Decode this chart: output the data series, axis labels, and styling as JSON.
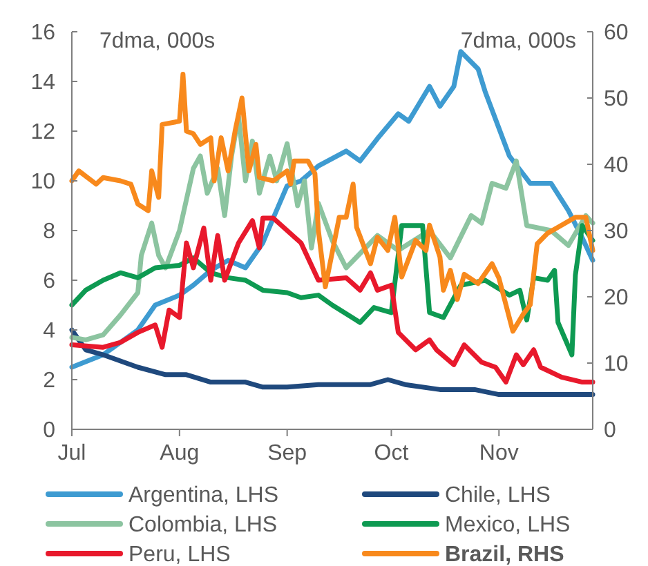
{
  "chart_data": {
    "type": "line",
    "ylabel": "7dma, 000s",
    "y2label": "7dma, 000s",
    "xlim": [
      "--07-01",
      "--11-28"
    ],
    "xticks": [
      {
        "value": "--07-01",
        "label": "Jul"
      },
      {
        "value": "--08-01",
        "label": "Aug"
      },
      {
        "value": "--09-01",
        "label": "Sep"
      },
      {
        "value": "--10-01",
        "label": "Oct"
      },
      {
        "value": "--11-01",
        "label": "Nov"
      }
    ],
    "ylim": [
      0,
      16
    ],
    "yticks": [
      0,
      2,
      4,
      6,
      8,
      10,
      12,
      14,
      16
    ],
    "y2lim": [
      0,
      60
    ],
    "y2ticks": [
      0,
      10,
      20,
      30,
      40,
      50,
      60
    ],
    "grid": false,
    "legend": "bottom",
    "line_style": "solid",
    "marker": "none",
    "series": [
      {
        "name": "Argentina, LHS",
        "color": "#3e9bd1",
        "x": [
          "--07-01",
          "--07-10",
          "--07-20",
          "--07-25",
          "--08-01",
          "--08-05",
          "--08-10",
          "--08-15",
          "--08-20",
          "--08-25",
          "--08-28",
          "--09-01",
          "--09-05",
          "--09-10",
          "--09-18",
          "--09-22",
          "--09-27",
          "--10-03",
          "--10-06",
          "--10-12",
          "--10-15",
          "--10-19",
          "--10-21",
          "--10-26",
          "--10-28",
          "--11-04",
          "--11-10",
          "--11-16",
          "--11-21",
          "--11-25",
          "--11-28"
        ],
        "values": [
          2.5,
          3.0,
          4.0,
          5.0,
          5.4,
          5.8,
          6.4,
          6.8,
          6.5,
          7.5,
          8.5,
          9.8,
          10.0,
          10.6,
          11.2,
          10.8,
          11.7,
          12.7,
          12.4,
          13.8,
          13.0,
          13.8,
          15.2,
          14.5,
          13.6,
          11.0,
          9.9,
          9.9,
          8.8,
          7.7,
          6.8
        ]
      },
      {
        "name": "Chile, LHS",
        "color": "#1f497d",
        "x": [
          "--07-01",
          "--07-05",
          "--07-10",
          "--07-20",
          "--07-28",
          "--08-03",
          "--08-10",
          "--08-20",
          "--08-25",
          "--09-01",
          "--09-10",
          "--09-25",
          "--09-30",
          "--10-05",
          "--10-15",
          "--10-25",
          "--11-01",
          "--11-28"
        ],
        "values": [
          4.0,
          3.2,
          3.0,
          2.5,
          2.2,
          2.2,
          1.9,
          1.9,
          1.7,
          1.7,
          1.8,
          1.8,
          2.0,
          1.8,
          1.6,
          1.6,
          1.4,
          1.4
        ]
      },
      {
        "name": "Colombia, LHS",
        "color": "#8cc4a0",
        "x": [
          "--07-01",
          "--07-05",
          "--07-10",
          "--07-15",
          "--07-20",
          "--07-21",
          "--07-24",
          "--07-26",
          "--07-28",
          "--08-01",
          "--08-05",
          "--08-07",
          "--08-09",
          "--08-12",
          "--08-14",
          "--08-16",
          "--08-18",
          "--08-20",
          "--08-22",
          "--08-24",
          "--08-27",
          "--08-29",
          "--09-01",
          "--09-04",
          "--09-06",
          "--09-08",
          "--09-10",
          "--09-14",
          "--09-18",
          "--09-27",
          "--10-03",
          "--10-12",
          "--10-18",
          "--10-24",
          "--10-27",
          "--10-30",
          "--11-03",
          "--11-06",
          "--11-09",
          "--11-16",
          "--11-21",
          "--11-26",
          "--11-28"
        ],
        "values": [
          3.7,
          3.6,
          3.8,
          4.6,
          5.5,
          7.0,
          8.3,
          7.0,
          6.5,
          8.0,
          10.5,
          11.0,
          9.5,
          10.5,
          8.6,
          11.0,
          12.6,
          10.0,
          11.6,
          9.5,
          11.0,
          10.0,
          11.5,
          9.0,
          10.0,
          7.3,
          9.1,
          7.6,
          6.5,
          7.8,
          7.2,
          8.0,
          6.9,
          8.6,
          8.3,
          9.9,
          9.7,
          10.8,
          8.2,
          8.0,
          7.4,
          8.6,
          8.3
        ]
      },
      {
        "name": "Mexico, LHS",
        "color": "#0e9a52",
        "x": [
          "--07-01",
          "--07-05",
          "--07-10",
          "--07-15",
          "--07-20",
          "--07-25",
          "--08-01",
          "--08-05",
          "--08-10",
          "--08-15",
          "--08-20",
          "--08-25",
          "--09-01",
          "--09-05",
          "--09-10",
          "--09-14",
          "--09-22",
          "--09-26",
          "--10-01",
          "--10-04",
          "--10-10",
          "--10-12",
          "--10-16",
          "--10-21",
          "--10-28",
          "--11-04",
          "--11-07",
          "--11-09",
          "--11-11",
          "--11-15",
          "--11-17",
          "--11-18",
          "--11-22",
          "--11-23",
          "--11-25",
          "--11-28"
        ],
        "values": [
          5.0,
          5.6,
          6.0,
          6.3,
          6.1,
          6.5,
          6.6,
          6.9,
          6.3,
          6.1,
          6.0,
          5.6,
          5.5,
          5.3,
          5.4,
          5.0,
          4.3,
          4.9,
          4.7,
          8.2,
          8.2,
          4.7,
          4.5,
          5.8,
          6.0,
          5.4,
          5.6,
          4.4,
          6.1,
          6.0,
          6.4,
          4.3,
          3.0,
          6.2,
          8.2,
          7.6
        ]
      },
      {
        "name": "Peru, LHS",
        "color": "#e8192c",
        "x": [
          "--07-01",
          "--07-10",
          "--07-15",
          "--07-20",
          "--07-25",
          "--07-27",
          "--07-29",
          "--08-01",
          "--08-03",
          "--08-05",
          "--08-08",
          "--08-10",
          "--08-12",
          "--08-14",
          "--08-18",
          "--08-22",
          "--08-24",
          "--08-25",
          "--08-28",
          "--09-01",
          "--09-05",
          "--09-10",
          "--09-18",
          "--09-22",
          "--09-25",
          "--09-27",
          "--10-01",
          "--10-03",
          "--10-08",
          "--10-12",
          "--10-14",
          "--10-19",
          "--10-22",
          "--10-27",
          "--10-31",
          "--11-03",
          "--11-06",
          "--11-08",
          "--11-11",
          "--11-13",
          "--11-19",
          "--11-25",
          "--11-28"
        ],
        "values": [
          3.4,
          3.3,
          3.5,
          3.9,
          4.2,
          3.3,
          4.8,
          4.5,
          7.5,
          6.5,
          8.1,
          6.0,
          7.8,
          6.0,
          7.5,
          8.4,
          7.3,
          8.5,
          8.5,
          8.0,
          7.5,
          6.0,
          6.1,
          5.6,
          6.3,
          5.6,
          5.8,
          3.9,
          3.2,
          3.6,
          3.2,
          2.6,
          3.4,
          2.7,
          2.5,
          1.9,
          3.0,
          2.6,
          3.2,
          2.5,
          2.1,
          1.9,
          1.9
        ]
      },
      {
        "name": "Brazil, RHS",
        "color": "#f8891c",
        "axis": "y2",
        "x": [
          "--07-01",
          "--07-03",
          "--07-08",
          "--07-10",
          "--07-15",
          "--07-18",
          "--07-20",
          "--07-23",
          "--07-24",
          "--07-26",
          "--07-27",
          "--08-01",
          "--08-02",
          "--08-03",
          "--08-05",
          "--08-07",
          "--08-10",
          "--08-11",
          "--08-13",
          "--08-15",
          "--08-17",
          "--08-19",
          "--08-21",
          "--08-23",
          "--08-24",
          "--08-28",
          "--09-01",
          "--09-02",
          "--09-03",
          "--09-07",
          "--09-09",
          "--09-10",
          "--09-12",
          "--09-16",
          "--09-18",
          "--09-20",
          "--09-21",
          "--09-25",
          "--09-27",
          "--09-30",
          "--10-02",
          "--10-04",
          "--10-08",
          "--10-11",
          "--10-12",
          "--10-15",
          "--10-16",
          "--10-18",
          "--10-20",
          "--10-22",
          "--10-26",
          "--10-30",
          "--11-01",
          "--11-05",
          "--11-08",
          "--11-10",
          "--11-12",
          "--11-15",
          "--11-18",
          "--11-23",
          "--11-26",
          "--11-28"
        ],
        "values": [
          37.5,
          39,
          37,
          38,
          37.5,
          37,
          34,
          33,
          39,
          35,
          46,
          46.5,
          53.6,
          45,
          44.6,
          43,
          44,
          37.5,
          44,
          39,
          45,
          50,
          39,
          43,
          38,
          37.5,
          39,
          37,
          40.5,
          40.5,
          38.6,
          30,
          21.5,
          32,
          32,
          37,
          30.5,
          25,
          29,
          27,
          32,
          23,
          28.5,
          27,
          30.8,
          26,
          21,
          24,
          19.6,
          23.4,
          22,
          25,
          22.8,
          14.8,
          17.4,
          18.8,
          28,
          29.6,
          30.5,
          32,
          32,
          27
        ]
      }
    ]
  }
}
